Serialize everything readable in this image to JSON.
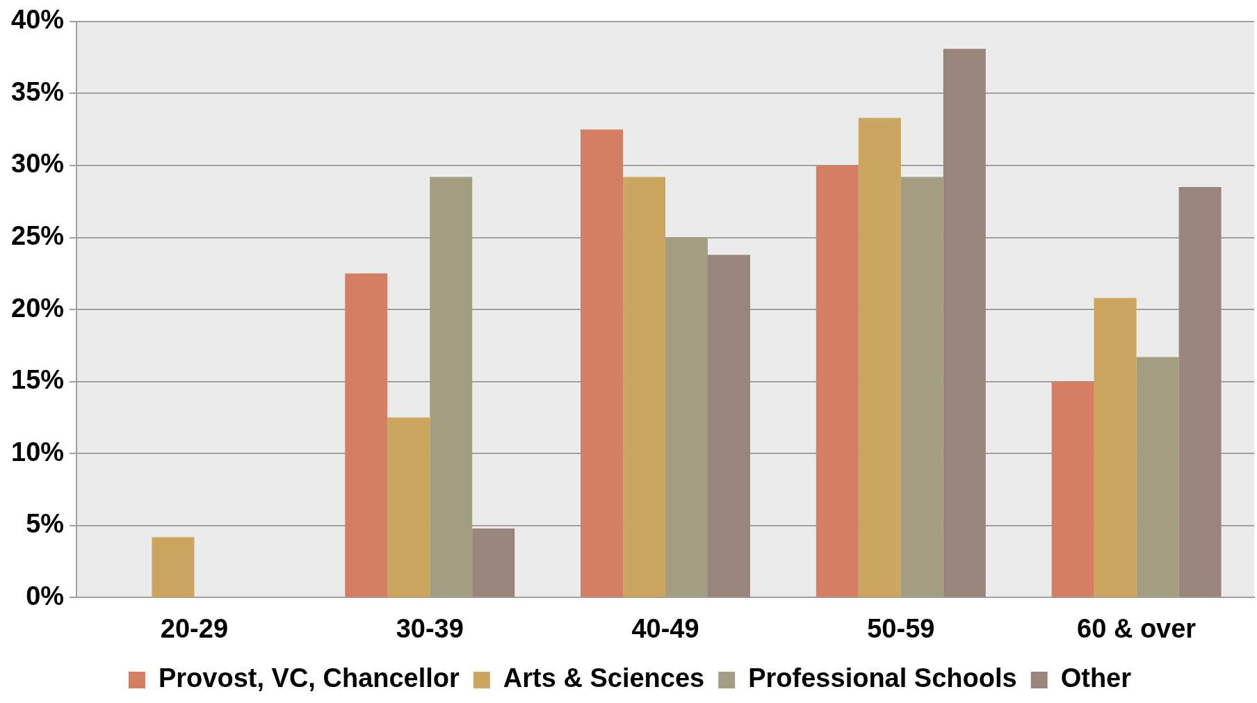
{
  "chart_data": {
    "type": "bar",
    "categories": [
      "20-29",
      "30-39",
      "40-49",
      "50-59",
      "60 & over"
    ],
    "series": [
      {
        "name": "Provost, VC, Chancellor",
        "color": "#d47e62",
        "values": [
          0,
          22.5,
          32.5,
          30.0,
          15.0
        ]
      },
      {
        "name": "Arts & Sciences",
        "color": "#cca65e",
        "values": [
          4.2,
          12.5,
          29.2,
          33.3,
          20.8
        ]
      },
      {
        "name": "Professional Schools",
        "color": "#a39e82",
        "values": [
          0,
          29.2,
          25.0,
          29.2,
          16.7
        ]
      },
      {
        "name": "Other",
        "color": "#9a857c",
        "values": [
          0,
          4.8,
          23.8,
          38.1,
          28.5
        ]
      }
    ],
    "ylim": [
      0,
      40
    ],
    "yticks": [
      {
        "value": 0,
        "label": "0%"
      },
      {
        "value": 5,
        "label": "5%"
      },
      {
        "value": 10,
        "label": "10%"
      },
      {
        "value": 15,
        "label": "15%"
      },
      {
        "value": 20,
        "label": "20%"
      },
      {
        "value": 25,
        "label": "25%"
      },
      {
        "value": 30,
        "label": "30%"
      },
      {
        "value": 35,
        "label": "35%"
      },
      {
        "value": 40,
        "label": "40%"
      }
    ],
    "grid": "y",
    "legend": "bottom"
  }
}
